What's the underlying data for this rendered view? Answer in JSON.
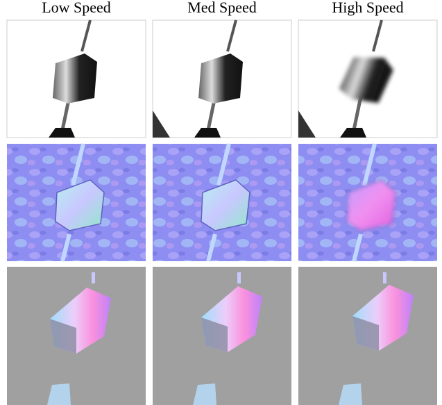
{
  "columns": [
    "Low Speed",
    "Med Speed",
    "High Speed"
  ]
}
